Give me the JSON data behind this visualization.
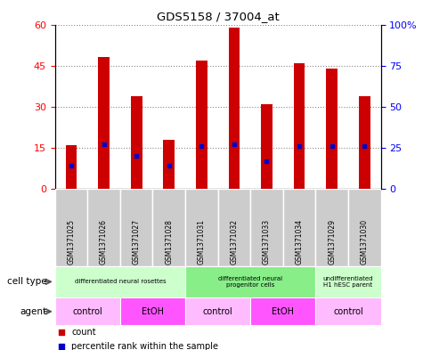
{
  "title": "GDS5158 / 37004_at",
  "samples": [
    "GSM1371025",
    "GSM1371026",
    "GSM1371027",
    "GSM1371028",
    "GSM1371031",
    "GSM1371032",
    "GSM1371033",
    "GSM1371034",
    "GSM1371029",
    "GSM1371030"
  ],
  "counts": [
    16,
    48,
    34,
    18,
    47,
    59,
    31,
    46,
    44,
    34
  ],
  "percentile_ranks": [
    14,
    27,
    20,
    14,
    26,
    27,
    17,
    26,
    26,
    26
  ],
  "ylim_left": [
    0,
    60
  ],
  "ylim_right": [
    0,
    100
  ],
  "yticks_left": [
    0,
    15,
    30,
    45,
    60
  ],
  "yticks_right": [
    0,
    25,
    50,
    75,
    100
  ],
  "bar_color": "#cc0000",
  "dot_color": "#0000cc",
  "bar_width": 0.35,
  "cell_type_groups": [
    {
      "label": "differentiated neural rosettes",
      "start": 0,
      "end": 3,
      "color": "#ccffcc"
    },
    {
      "label": "differentiated neural\nprogenitor cells",
      "start": 4,
      "end": 7,
      "color": "#88ee88"
    },
    {
      "label": "undifferentiated\nH1 hESC parent",
      "start": 8,
      "end": 9,
      "color": "#ccffcc"
    }
  ],
  "agent_groups": [
    {
      "label": "control",
      "start": 0,
      "end": 1,
      "color": "#ffbbff"
    },
    {
      "label": "EtOH",
      "start": 2,
      "end": 3,
      "color": "#ff55ff"
    },
    {
      "label": "control",
      "start": 4,
      "end": 5,
      "color": "#ffbbff"
    },
    {
      "label": "EtOH",
      "start": 6,
      "end": 7,
      "color": "#ff55ff"
    },
    {
      "label": "control",
      "start": 8,
      "end": 9,
      "color": "#ffbbff"
    }
  ],
  "grid_color": "#888888",
  "bg_color": "#ffffff",
  "sample_box_color": "#cccccc",
  "cell_type_row_label": "cell type",
  "agent_row_label": "agent",
  "legend_count_label": "count",
  "legend_percentile_label": "percentile rank within the sample",
  "legend_count_color": "#cc0000",
  "legend_dot_color": "#0000cc"
}
